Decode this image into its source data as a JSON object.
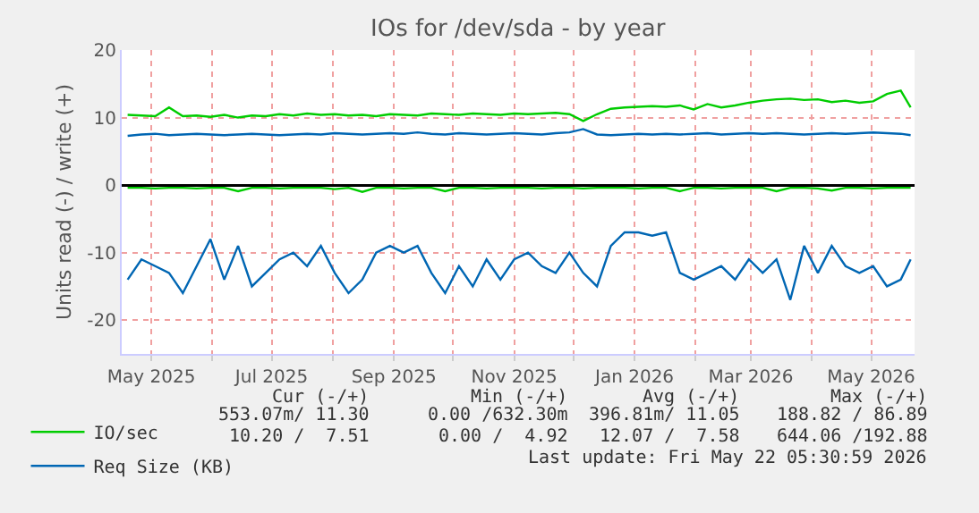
{
  "chart_data": {
    "type": "line",
    "title": "IOs for /dev/sda - by year",
    "ylabel": "Units read (-) / write (+)",
    "x": [
      "2025-04-19",
      "2025-04-26",
      "2025-05-03",
      "2025-05-10",
      "2025-05-17",
      "2025-05-24",
      "2025-05-31",
      "2025-06-07",
      "2025-06-14",
      "2025-06-21",
      "2025-06-28",
      "2025-07-05",
      "2025-07-12",
      "2025-07-19",
      "2025-07-26",
      "2025-08-02",
      "2025-08-09",
      "2025-08-16",
      "2025-08-23",
      "2025-08-30",
      "2025-09-06",
      "2025-09-13",
      "2025-09-20",
      "2025-09-27",
      "2025-10-04",
      "2025-10-11",
      "2025-10-18",
      "2025-10-25",
      "2025-11-01",
      "2025-11-08",
      "2025-11-15",
      "2025-11-22",
      "2025-11-29",
      "2025-12-06",
      "2025-12-13",
      "2025-12-20",
      "2025-12-27",
      "2026-01-03",
      "2026-01-10",
      "2026-01-17",
      "2026-01-24",
      "2026-01-31",
      "2026-02-07",
      "2026-02-14",
      "2026-02-21",
      "2026-02-28",
      "2026-03-07",
      "2026-03-14",
      "2026-03-21",
      "2026-03-28",
      "2026-04-04",
      "2026-04-11",
      "2026-04-18",
      "2026-04-25",
      "2026-05-02",
      "2026-05-09",
      "2026-05-16",
      "2026-05-21"
    ],
    "series": [
      {
        "name": "IO/sec",
        "color": "#00cc00",
        "values": [
          10.4,
          10.3,
          10.2,
          11.5,
          10.2,
          10.3,
          10.1,
          10.4,
          10.0,
          10.3,
          10.2,
          10.5,
          10.3,
          10.6,
          10.4,
          10.5,
          10.3,
          10.4,
          10.2,
          10.5,
          10.4,
          10.3,
          10.6,
          10.5,
          10.4,
          10.6,
          10.5,
          10.4,
          10.6,
          10.5,
          10.6,
          10.7,
          10.5,
          9.5,
          10.5,
          11.3,
          11.5,
          11.6,
          11.7,
          11.6,
          11.8,
          11.2,
          12.0,
          11.5,
          11.8,
          12.2,
          12.5,
          12.7,
          12.8,
          12.6,
          12.7,
          12.3,
          12.5,
          12.2,
          12.4,
          13.5,
          14.0,
          11.5
        ]
      },
      {
        "color": "#00cc00",
        "values": [
          -0.4,
          -0.4,
          -0.5,
          -0.4,
          -0.4,
          -0.5,
          -0.4,
          -0.4,
          -0.9,
          -0.4,
          -0.4,
          -0.5,
          -0.4,
          -0.4,
          -0.4,
          -0.6,
          -0.4,
          -1.0,
          -0.4,
          -0.4,
          -0.5,
          -0.4,
          -0.4,
          -0.9,
          -0.4,
          -0.4,
          -0.5,
          -0.4,
          -0.4,
          -0.4,
          -0.5,
          -0.4,
          -0.4,
          -0.5,
          -0.4,
          -0.4,
          -0.4,
          -0.5,
          -0.4,
          -0.4,
          -0.9,
          -0.4,
          -0.4,
          -0.5,
          -0.4,
          -0.4,
          -0.4,
          -0.9,
          -0.4,
          -0.4,
          -0.5,
          -0.8,
          -0.4,
          -0.4,
          -0.5,
          -0.4,
          -0.4,
          -0.4
        ]
      },
      {
        "name": "Req Size (KB)",
        "color": "#0066b3",
        "values": [
          7.3,
          7.5,
          7.6,
          7.4,
          7.5,
          7.6,
          7.5,
          7.4,
          7.5,
          7.6,
          7.5,
          7.4,
          7.5,
          7.6,
          7.5,
          7.7,
          7.6,
          7.5,
          7.6,
          7.7,
          7.6,
          7.8,
          7.6,
          7.5,
          7.7,
          7.6,
          7.5,
          7.6,
          7.7,
          7.6,
          7.5,
          7.7,
          7.8,
          8.3,
          7.5,
          7.4,
          7.5,
          7.6,
          7.5,
          7.6,
          7.5,
          7.6,
          7.7,
          7.5,
          7.6,
          7.7,
          7.6,
          7.7,
          7.6,
          7.5,
          7.6,
          7.7,
          7.6,
          7.7,
          7.8,
          7.7,
          7.6,
          7.4
        ]
      },
      {
        "color": "#0066b3",
        "values": [
          -14,
          -11,
          -12,
          -13,
          -16,
          -12,
          -8,
          -14,
          -9,
          -15,
          -13,
          -11,
          -10,
          -12,
          -9,
          -13,
          -16,
          -14,
          -10,
          -9,
          -10,
          -9,
          -13,
          -16,
          -12,
          -15,
          -11,
          -14,
          -11,
          -10,
          -12,
          -13,
          -10,
          -13,
          -15,
          -9,
          -7,
          -7,
          -7.5,
          -7,
          -13,
          -14,
          -13,
          -12,
          -14,
          -11,
          -13,
          -11,
          -17,
          -9,
          -13,
          -9,
          -12,
          -13,
          -12,
          -15,
          -14,
          -11
        ]
      }
    ],
    "xlim": [
      "2025-04-16",
      "2026-05-23"
    ],
    "xticks": [
      {
        "value": "2025-05-01",
        "label": "May 2025"
      },
      {
        "value": "2025-06-01",
        "label": null
      },
      {
        "value": "2025-07-01",
        "label": "Jul 2025"
      },
      {
        "value": "2025-08-01",
        "label": null
      },
      {
        "value": "2025-09-01",
        "label": "Sep 2025"
      },
      {
        "value": "2025-10-01",
        "label": null
      },
      {
        "value": "2025-11-01",
        "label": "Nov 2025"
      },
      {
        "value": "2025-12-01",
        "label": null
      },
      {
        "value": "2026-01-01",
        "label": "Jan 2026"
      },
      {
        "value": "2026-02-01",
        "label": null
      },
      {
        "value": "2026-03-01",
        "label": "Mar 2026"
      },
      {
        "value": "2026-04-01",
        "label": null
      },
      {
        "value": "2026-05-01",
        "label": "May 2026"
      }
    ],
    "ylim": [
      -25,
      20
    ],
    "yticks": [
      -20,
      -10,
      0,
      10,
      20
    ],
    "grid": true,
    "legend": "bottom left",
    "marker": "none",
    "line_style": "solid",
    "annotations": [
      "Cur (-/+)",
      "Min (-/+)",
      "Avg (-/+)",
      "Max (-/+)",
      "553.07m/ 11.30",
      "0.00 /632.30m",
      "396.81m/ 11.05",
      "188.82 / 86.89",
      "10.20 /  7.51",
      "0.00 /  4.92",
      "12.07 /  7.58",
      "644.06 /192.88",
      "Last update: Fri May 22 05:30:59 2026"
    ]
  }
}
